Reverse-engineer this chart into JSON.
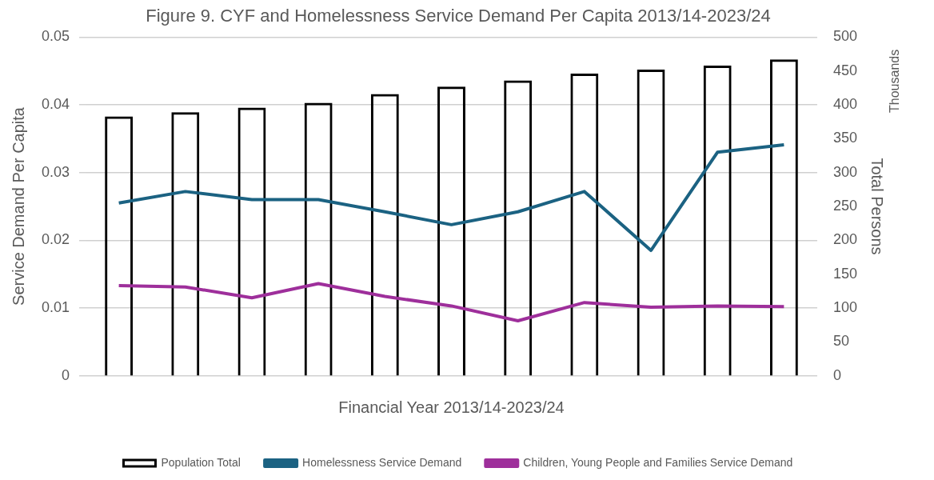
{
  "chart_data": {
    "type": "bar",
    "title": "Figure 9. CYF and Homelessness Service Demand Per Capita 2013/14-2023/24",
    "xlabel": "Financial Year 2013/14-2023/24",
    "ylabel": "Service Demand Per Capita",
    "y2label": "Total Persons",
    "annotations": [
      "Thousands"
    ],
    "categories": [
      null,
      null,
      null,
      null,
      null,
      null,
      null,
      null,
      null,
      null,
      null
    ],
    "series": [
      {
        "name": "Population Total",
        "axis": "y2",
        "color": "#000000",
        "values": [
          383,
          389,
          396,
          403,
          416,
          427,
          436,
          446,
          452,
          458,
          467
        ]
      },
      {
        "name": "Homelessness Service Demand",
        "type": "line",
        "color": "#1b6282",
        "values": [
          0.0255,
          0.0272,
          0.026,
          0.026,
          0.0242,
          0.0223,
          0.0242,
          0.0272,
          0.0185,
          0.033,
          0.0341
        ]
      },
      {
        "name": "Children, Young People and Families Service Demand",
        "type": "line",
        "color": "#9e2f9b",
        "values": [
          0.0133,
          0.0131,
          0.0115,
          0.0136,
          0.0117,
          0.0103,
          0.0081,
          0.0108,
          0.0101,
          0.0103,
          0.0102
        ]
      }
    ],
    "ylim": [
      0,
      0.05
    ],
    "yticks": [
      {
        "value": 0,
        "label": "0"
      },
      0.01,
      0.02,
      0.03,
      0.04,
      0.05
    ],
    "y2lim": [
      0,
      500
    ],
    "y2ticks": [
      0,
      50,
      100,
      150,
      200,
      250,
      300,
      350,
      400,
      450,
      500
    ],
    "grid": "y",
    "legend": "bottom",
    "marker": "none",
    "line_style": "solid"
  }
}
